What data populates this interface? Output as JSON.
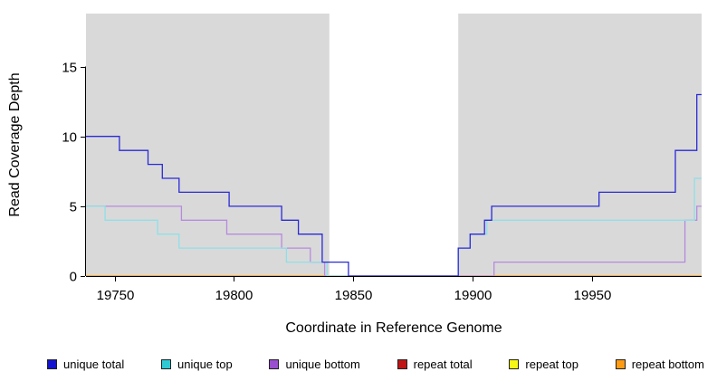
{
  "chart_data": {
    "type": "line",
    "subtype": "step-coverage",
    "title": "",
    "xlabel": "Coordinate in Reference Genome",
    "ylabel": "Read Coverage Depth",
    "xlim": [
      19738,
      19996
    ],
    "ylim": [
      0,
      18.8
    ],
    "xticks": [
      19750,
      19800,
      19850,
      19900,
      19950
    ],
    "yticks": [
      0,
      5,
      10,
      15
    ],
    "grid": false,
    "legend_position": "bottom",
    "background": "#ffffff",
    "plot_shading_color": "#d9d9d9",
    "axis_color": "#000000",
    "shaded_regions": [
      {
        "from": 19738,
        "to": 19840
      },
      {
        "from": 19894,
        "to": 19996
      }
    ],
    "series": [
      {
        "name": "repeat total",
        "color": "#c01414",
        "points": [
          [
            19738,
            0
          ]
        ]
      },
      {
        "name": "repeat top",
        "color": "#f7f714",
        "points": [
          [
            19738,
            0
          ]
        ]
      },
      {
        "name": "repeat bottom",
        "color": "#ff9c14",
        "points": [
          [
            19738,
            0
          ]
        ]
      },
      {
        "name": "unique bottom",
        "color": "#b78ade",
        "points": [
          [
            19738,
            5
          ],
          [
            19778,
            4
          ],
          [
            19797,
            3
          ],
          [
            19820,
            2
          ],
          [
            19832,
            1
          ],
          [
            19838,
            0
          ],
          [
            19909,
            1
          ],
          [
            19989,
            4
          ],
          [
            19994,
            5
          ]
        ]
      },
      {
        "name": "unique top",
        "color": "#8fdfe8",
        "points": [
          [
            19738,
            5
          ],
          [
            19746,
            4
          ],
          [
            19768,
            3
          ],
          [
            19777,
            2
          ],
          [
            19822,
            1
          ],
          [
            19839,
            0
          ],
          [
            19894,
            2
          ],
          [
            19899,
            3
          ],
          [
            19906,
            4
          ],
          [
            19993,
            7
          ]
        ]
      },
      {
        "name": "unique total",
        "color": "#2a2ad8",
        "points": [
          [
            19738,
            10
          ],
          [
            19752,
            9
          ],
          [
            19764,
            8
          ],
          [
            19770,
            7
          ],
          [
            19777,
            6
          ],
          [
            19798,
            5
          ],
          [
            19820,
            4
          ],
          [
            19827,
            3
          ],
          [
            19837,
            1
          ],
          [
            19848,
            0
          ],
          [
            19894,
            2
          ],
          [
            19899,
            3
          ],
          [
            19905,
            4
          ],
          [
            19908,
            5
          ],
          [
            19953,
            6
          ],
          [
            19985,
            9
          ],
          [
            19994,
            13
          ]
        ]
      }
    ],
    "legend": [
      {
        "label": "unique total",
        "color": "#1414cf"
      },
      {
        "label": "unique top",
        "color": "#2fc9d4"
      },
      {
        "label": "unique bottom",
        "color": "#9a4fd0"
      },
      {
        "label": "repeat total",
        "color": "#c01414"
      },
      {
        "label": "repeat top",
        "color": "#f7f714"
      },
      {
        "label": "repeat bottom",
        "color": "#ff9c14"
      }
    ]
  }
}
